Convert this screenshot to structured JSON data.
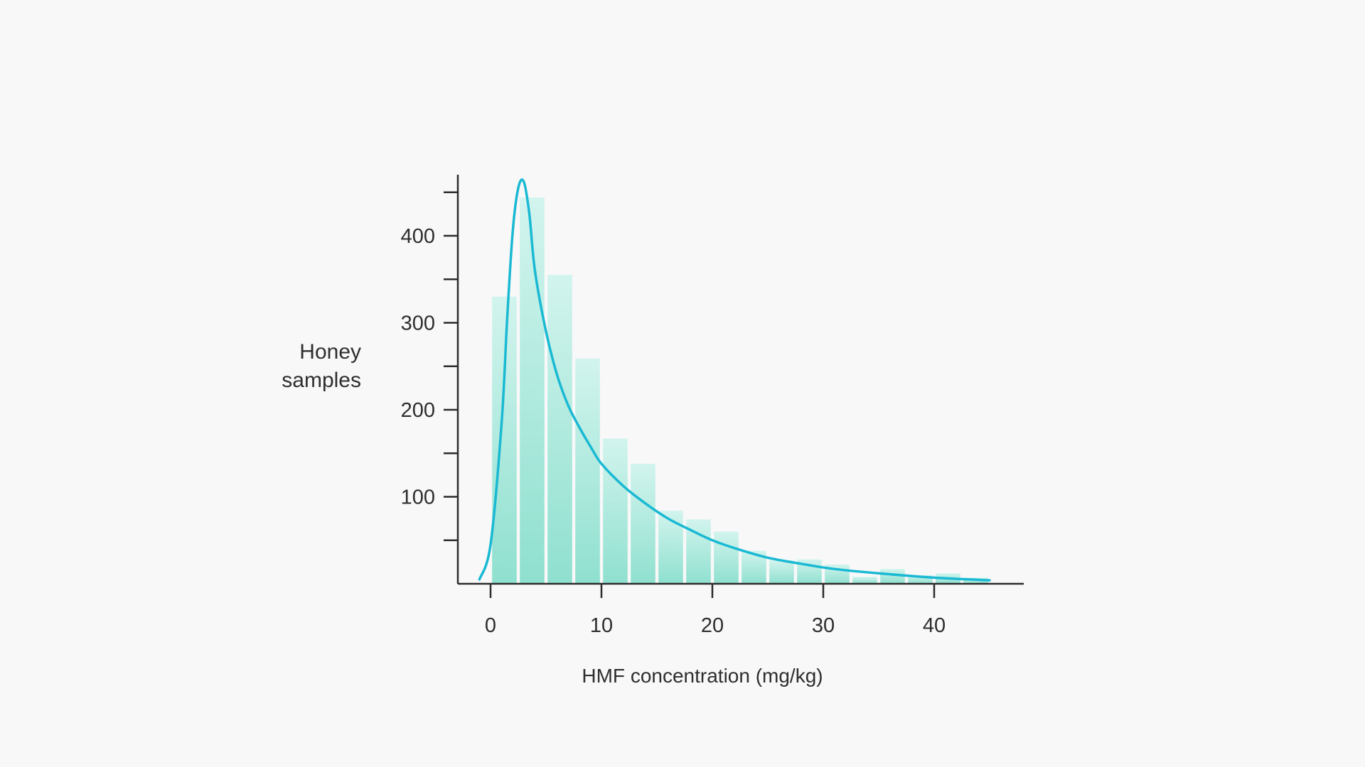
{
  "chart_data": {
    "type": "bar",
    "title": "",
    "xlabel": "HMF concentration (mg/kg)",
    "ylabel_lines": [
      "Honey",
      "samples"
    ],
    "xlim": [
      -3,
      48
    ],
    "ylim": [
      0,
      470
    ],
    "x_ticks": [
      0,
      10,
      20,
      30,
      40
    ],
    "y_ticks": [
      100,
      200,
      300,
      400
    ],
    "y_minor_ticks": [
      50,
      150,
      250,
      350,
      450
    ],
    "grid": false,
    "bin_width": 2.5,
    "bins": [
      {
        "x": 1.25,
        "value": 330
      },
      {
        "x": 3.75,
        "value": 444
      },
      {
        "x": 6.25,
        "value": 355
      },
      {
        "x": 8.75,
        "value": 259
      },
      {
        "x": 11.25,
        "value": 167
      },
      {
        "x": 13.75,
        "value": 138
      },
      {
        "x": 16.25,
        "value": 84
      },
      {
        "x": 18.75,
        "value": 74
      },
      {
        "x": 21.25,
        "value": 60
      },
      {
        "x": 23.75,
        "value": 38
      },
      {
        "x": 26.25,
        "value": 27
      },
      {
        "x": 28.75,
        "value": 28
      },
      {
        "x": 31.25,
        "value": 22
      },
      {
        "x": 33.75,
        "value": 8
      },
      {
        "x": 36.25,
        "value": 17
      },
      {
        "x": 38.75,
        "value": 10
      },
      {
        "x": 41.25,
        "value": 12
      },
      {
        "x": 43.75,
        "value": 7
      }
    ],
    "fit_curve": {
      "type": "lognormal",
      "x": [
        -1,
        0,
        1,
        1.5,
        2,
        2.5,
        3,
        3.5,
        4,
        5,
        6,
        7,
        8,
        9,
        10,
        12,
        14,
        16,
        18,
        20,
        22,
        25,
        28,
        31,
        35,
        40,
        45
      ],
      "y": [
        5,
        45,
        185,
        305,
        405,
        455,
        462,
        425,
        360,
        290,
        240,
        205,
        180,
        158,
        138,
        112,
        92,
        75,
        62,
        50,
        41,
        30,
        23,
        17,
        12,
        7,
        4
      ]
    },
    "colors": {
      "bar_top": "#d2f4ee",
      "bar_bottom": "#8fe0cf",
      "curve": "#1ab9d3",
      "axis": "#2c2c2c"
    }
  }
}
